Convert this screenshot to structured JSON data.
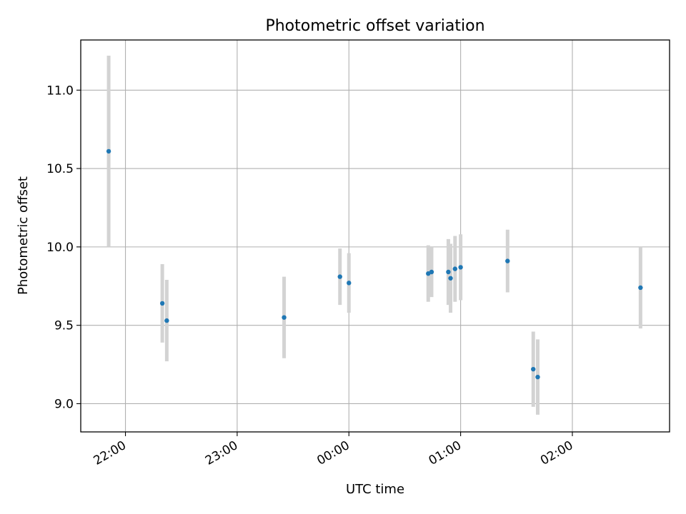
{
  "chart_data": {
    "type": "scatter",
    "title": "Photometric offset variation",
    "xlabel": "UTC time",
    "ylabel": "Photometric offset",
    "x_unit": "hours (UTC, continuing past midnight)",
    "xlim": [
      21.6,
      26.87
    ],
    "ylim": [
      8.82,
      11.32
    ],
    "grid": true,
    "x_ticks": [
      {
        "value": 22,
        "label": "22:00"
      },
      {
        "value": 23,
        "label": "23:00"
      },
      {
        "value": 24,
        "label": "00:00"
      },
      {
        "value": 25,
        "label": "01:00"
      },
      {
        "value": 26,
        "label": "02:00"
      }
    ],
    "y_ticks": [
      {
        "value": 9.0,
        "label": "9.0"
      },
      {
        "value": 9.5,
        "label": "9.5"
      },
      {
        "value": 10.0,
        "label": "10.0"
      },
      {
        "value": 10.5,
        "label": "10.5"
      },
      {
        "value": 11.0,
        "label": "11.0"
      }
    ],
    "series": [
      {
        "marker_color": "#1f77b4",
        "errorbar_color": "#d3d3d3",
        "points": [
          {
            "x": 21.85,
            "y": 10.61,
            "err": 0.61
          },
          {
            "x": 22.33,
            "y": 9.64,
            "err": 0.25
          },
          {
            "x": 22.37,
            "y": 9.53,
            "err": 0.26
          },
          {
            "x": 23.42,
            "y": 9.55,
            "err": 0.26
          },
          {
            "x": 23.92,
            "y": 9.81,
            "err": 0.18
          },
          {
            "x": 24.0,
            "y": 9.77,
            "err": 0.19
          },
          {
            "x": 24.71,
            "y": 9.83,
            "err": 0.18
          },
          {
            "x": 24.74,
            "y": 9.84,
            "err": 0.16
          },
          {
            "x": 24.89,
            "y": 9.84,
            "err": 0.21
          },
          {
            "x": 24.91,
            "y": 9.8,
            "err": 0.22
          },
          {
            "x": 24.95,
            "y": 9.86,
            "err": 0.21
          },
          {
            "x": 25.0,
            "y": 9.87,
            "err": 0.21
          },
          {
            "x": 25.42,
            "y": 9.91,
            "err": 0.2
          },
          {
            "x": 25.65,
            "y": 9.22,
            "err": 0.24
          },
          {
            "x": 25.69,
            "y": 9.17,
            "err": 0.24
          },
          {
            "x": 26.61,
            "y": 9.74,
            "err": 0.26
          }
        ]
      }
    ]
  }
}
